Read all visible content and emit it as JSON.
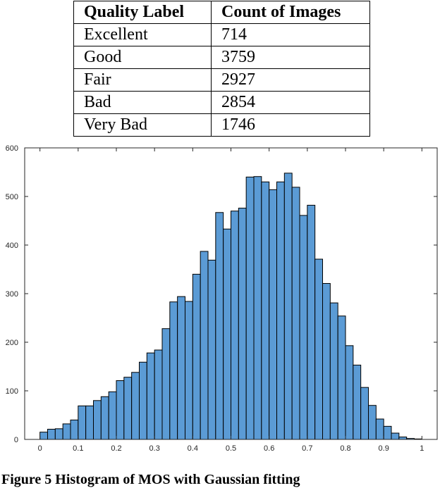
{
  "table": {
    "headers": [
      "Quality Label",
      "Count of Images"
    ],
    "rows": [
      {
        "label": "Excellent",
        "count": "714"
      },
      {
        "label": "Good",
        "count": "3759"
      },
      {
        "label": "Fair",
        "count": "2927"
      },
      {
        "label": "Bad",
        "count": "2854"
      },
      {
        "label": "Very Bad",
        "count": "1746"
      }
    ]
  },
  "chart_data": {
    "type": "bar",
    "title": "",
    "xlabel": "",
    "ylabel": "",
    "xlim": [
      -0.04,
      1.04
    ],
    "ylim": [
      0,
      600
    ],
    "bin_width": 0.02,
    "bin_start": 0,
    "bar_color": "#5b9bd5",
    "edge_color": "#000000",
    "grid": false,
    "x_ticks": [
      0,
      0.1,
      0.2,
      0.3,
      0.4,
      0.5,
      0.6,
      0.7,
      0.8,
      0.9,
      1
    ],
    "x_tick_labels": [
      "0",
      "0.1",
      "0.2",
      "0.3",
      "0.4",
      "0.5",
      "0.6",
      "0.7",
      "0.8",
      "0.9",
      "1"
    ],
    "y_ticks": [
      0,
      100,
      200,
      300,
      400,
      500,
      600
    ],
    "y_tick_labels": [
      "0",
      "100",
      "200",
      "300",
      "400",
      "500",
      "600"
    ],
    "values": [
      15,
      21,
      22,
      32,
      40,
      69,
      69,
      80,
      88,
      98,
      121,
      128,
      138,
      159,
      178,
      184,
      228,
      283,
      294,
      284,
      340,
      387,
      369,
      467,
      433,
      470,
      476,
      540,
      541,
      530,
      514,
      530,
      548,
      519,
      461,
      482,
      371,
      321,
      281,
      254,
      193,
      153,
      107,
      70,
      42,
      27,
      13,
      5,
      2,
      1
    ]
  },
  "caption": "Figure 5 Histogram of MOS with Gaussian fitting"
}
